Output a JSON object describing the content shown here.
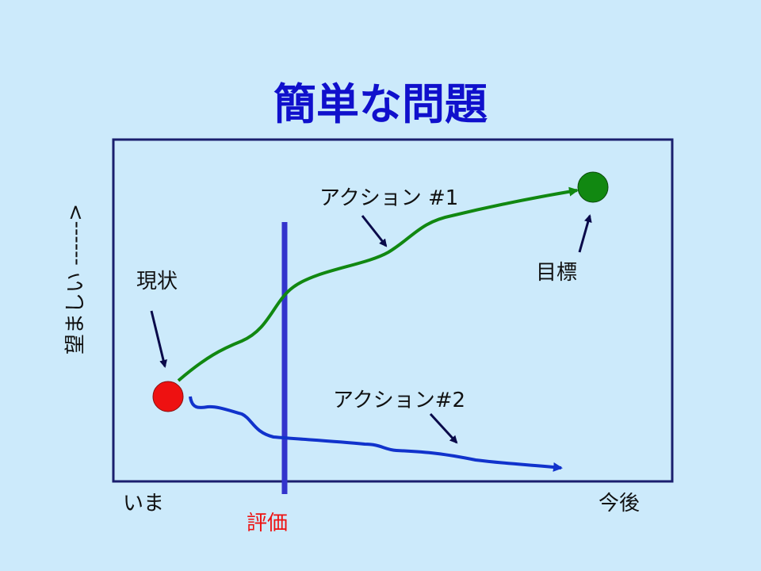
{
  "title": "簡単な問題",
  "axis": {
    "y_label": "望ましい ------>",
    "x_start": "いま",
    "x_end": "今後"
  },
  "labels": {
    "current": "現状",
    "goal": "目標",
    "action1": "アクション #1",
    "action2": "アクション#2",
    "evaluation": "評価"
  }
}
